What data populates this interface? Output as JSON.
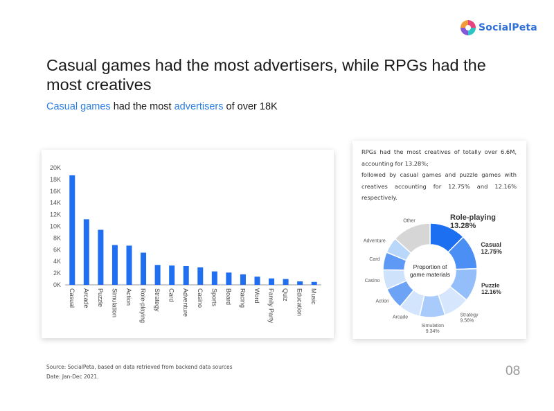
{
  "brand": {
    "name": "SocialPeta"
  },
  "header": {
    "title": "Casual games had the most advertisers, while RPGs had the most creatives",
    "subtitle": {
      "part1": "Casual games",
      "part2": " had the most ",
      "part3": "advertisers",
      "part4": " of over 18K"
    }
  },
  "note": {
    "line1": "RPGs had the most creatives of totally over 6.6M, accounting for 13.28%;",
    "line2": "followed by casual games and puzzle games with creatives accounting for 12.75% and 12.16% respectively."
  },
  "footer": {
    "source": "Source: SocialPeta, based on data retrieved from backend data sources",
    "date": "Date: Jan-Dec 2021.",
    "page": "08"
  },
  "chart_data": [
    {
      "type": "bar",
      "color": "#1f6ff0",
      "categories": [
        "Casual",
        "Arcade",
        "Puzzle",
        "Simulation",
        "Action",
        "Role-playing",
        "Strategy",
        "Card",
        "Adventure",
        "Casino",
        "Sports",
        "Board",
        "Racing",
        "Word",
        "Family Party",
        "Quiz",
        "Education",
        "Music"
      ],
      "values": [
        18700,
        11200,
        9400,
        6800,
        6700,
        5500,
        3400,
        3300,
        3200,
        3000,
        2300,
        2100,
        1800,
        1400,
        1100,
        1000,
        600,
        500
      ],
      "ylim": [
        0,
        20000
      ],
      "y_ticks": [
        0,
        2000,
        4000,
        6000,
        8000,
        10000,
        12000,
        14000,
        16000,
        18000,
        20000
      ],
      "y_tick_labels": [
        "0K",
        "2K",
        "4K",
        "6K",
        "8K",
        "10K",
        "12K",
        "14K",
        "16K",
        "18K",
        "20K"
      ],
      "grid": false
    },
    {
      "type": "pie",
      "center_label": [
        "Proportion of",
        "game materials"
      ],
      "slices": [
        {
          "name": "Role-playing",
          "value": 13.28,
          "label": "13.28%",
          "color": "#1b6ff0"
        },
        {
          "name": "Casual",
          "value": 12.75,
          "label": "12.75%",
          "color": "#4b8ff5"
        },
        {
          "name": "Puzzle",
          "value": 12.16,
          "label": "12.16%",
          "color": "#94befa"
        },
        {
          "name": "Strategy",
          "value": 9.56,
          "label": "9.56%",
          "color": "#d6e7fd"
        },
        {
          "name": "Simulation",
          "value": 9.34,
          "label": "9.34%",
          "color": "#a8cbfb"
        },
        {
          "name": "Arcade",
          "value": 7.9,
          "label": "",
          "color": "#d3e5fd"
        },
        {
          "name": "Action",
          "value": 7.9,
          "label": "",
          "color": "#6da3f5"
        },
        {
          "name": "Casino",
          "value": 7.2,
          "label": "",
          "color": "#cfe2fc"
        },
        {
          "name": "Card",
          "value": 6.5,
          "label": "",
          "color": "#5e9af5"
        },
        {
          "name": "Adventure",
          "value": 5.8,
          "label": "",
          "color": "#b9d6fb"
        },
        {
          "name": "Other",
          "value": 14.16,
          "label": "",
          "color": "#d6d6d6"
        }
      ]
    }
  ]
}
